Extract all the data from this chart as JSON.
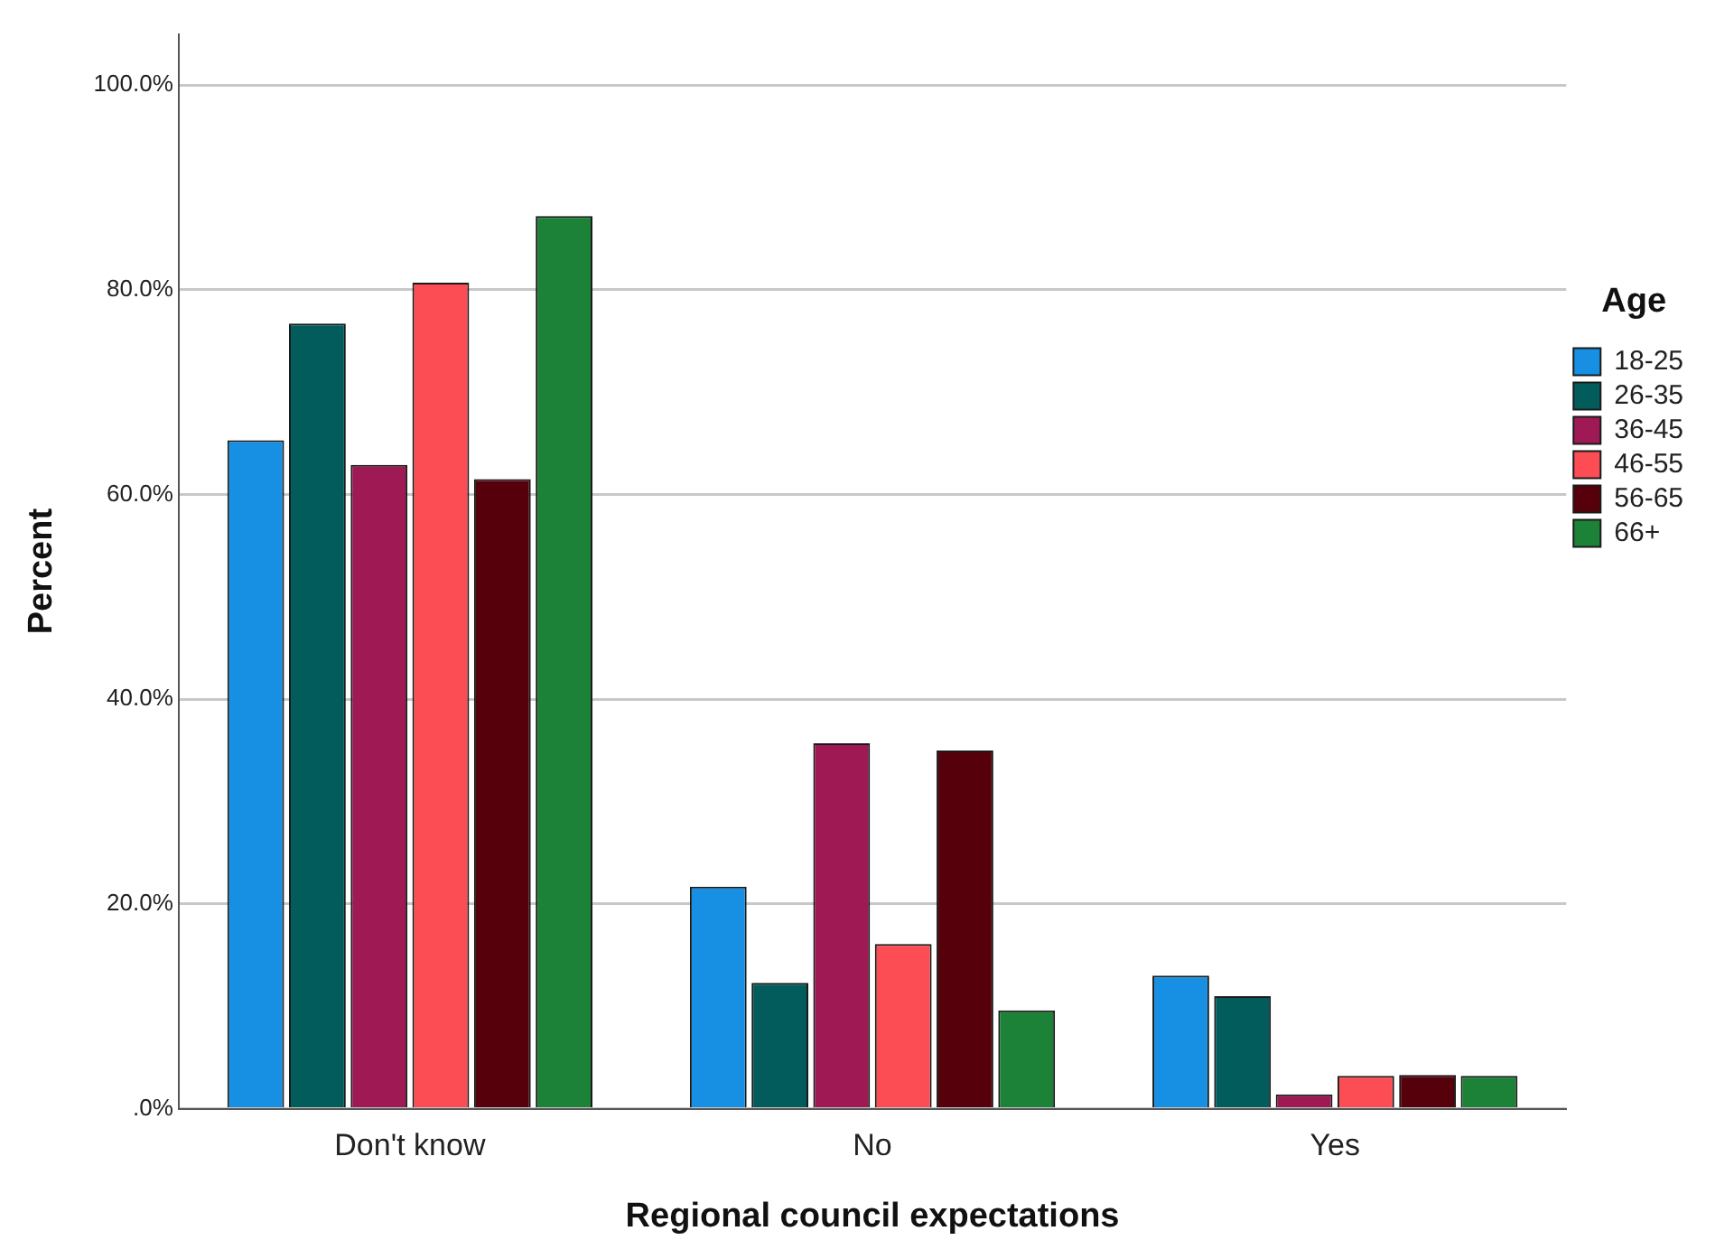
{
  "chart_data": {
    "type": "bar",
    "xlabel": "Regional council expectations",
    "ylabel": "Percent",
    "legend_title": "Age",
    "categories": [
      "Don't know",
      "No",
      "Yes"
    ],
    "series": [
      {
        "name": "18-25",
        "color": "#1790e4",
        "values": [
          65.3,
          21.7,
          13.0
        ]
      },
      {
        "name": "26-35",
        "color": "#015c5b",
        "values": [
          76.7,
          12.3,
          11.0
        ]
      },
      {
        "name": "36-45",
        "color": "#9f1a54",
        "values": [
          62.9,
          35.7,
          1.4
        ]
      },
      {
        "name": "46-55",
        "color": "#fc4d55",
        "values": [
          80.7,
          16.1,
          3.2
        ]
      },
      {
        "name": "56-65",
        "color": "#55000b",
        "values": [
          61.5,
          35.0,
          3.3
        ]
      },
      {
        "name": "66+",
        "color": "#1b8238",
        "values": [
          87.2,
          9.6,
          3.2
        ]
      }
    ],
    "ylim": [
      0,
      105
    ],
    "yticks": [
      {
        "value": 0,
        "label": ".0%"
      },
      {
        "value": 20,
        "label": "20.0%"
      },
      {
        "value": 40,
        "label": "40.0%"
      },
      {
        "value": 60,
        "label": "60.0%"
      },
      {
        "value": 80,
        "label": "80.0%"
      },
      {
        "value": 100,
        "label": "100.0%"
      }
    ],
    "grid": "y",
    "legend": "right"
  }
}
